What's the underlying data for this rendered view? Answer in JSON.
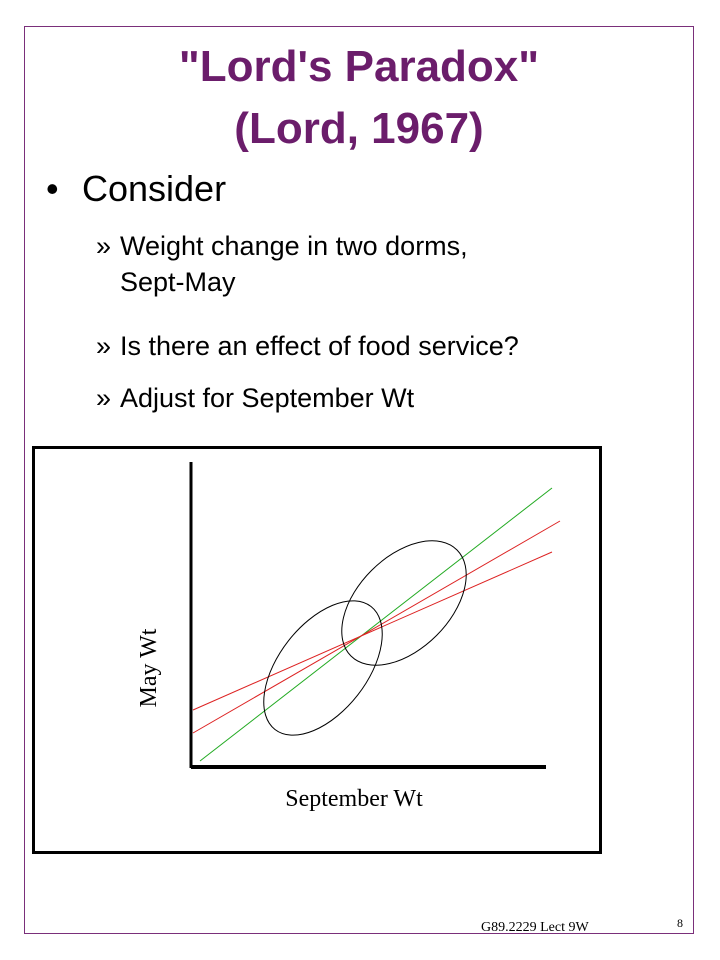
{
  "slide": {
    "title_line1": "\"Lord's Paradox\"",
    "title_line2": "(Lord, 1967)",
    "bullet": {
      "marker": "•",
      "text": "Consider"
    },
    "sub_items": [
      {
        "marker": "»",
        "text": "Weight change in two dorms,\nSept-May"
      },
      {
        "marker": "»",
        "text": "Is there an effect of food service?"
      },
      {
        "marker": "»",
        "text": "Adjust for September Wt"
      }
    ],
    "footer": "G89.2229 Lect 9W",
    "page_number": "8"
  },
  "diagram": {
    "x_axis_label": "September Wt",
    "y_axis_label": "May Wt",
    "colors": {
      "title": "#6b1d6b",
      "identity_line": "#22aa22",
      "regression_lines": "#dd2222",
      "ellipses": "#000000",
      "axes": "#000000"
    }
  }
}
